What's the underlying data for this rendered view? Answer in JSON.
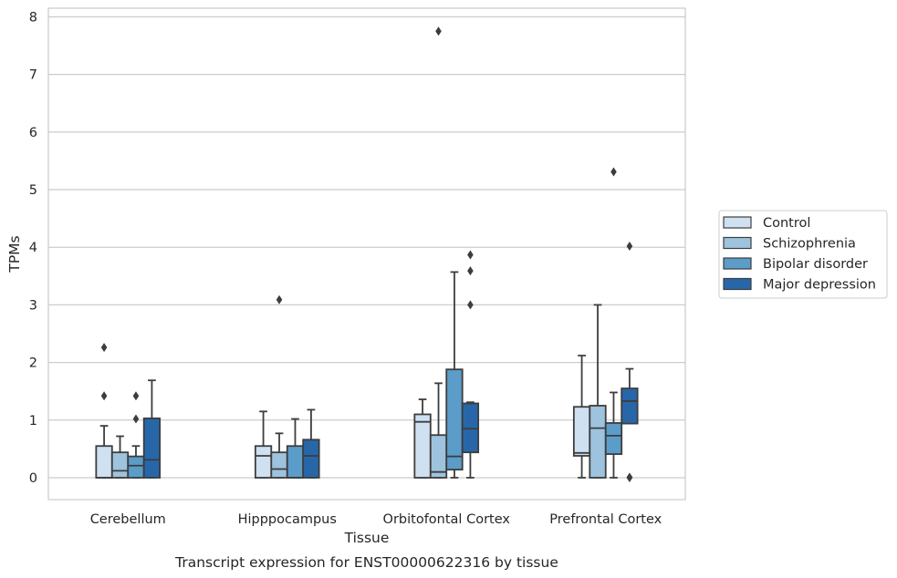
{
  "chart_data": {
    "type": "box",
    "caption": "Transcript expression for ENST00000622316 by tissue",
    "xlabel": "Tissue",
    "ylabel": "TPMs",
    "ylim": [
      -0.38,
      8.15
    ],
    "yticks": [
      "0",
      "1",
      "2",
      "3",
      "4",
      "5",
      "6",
      "7",
      "8"
    ],
    "grid": true,
    "legend_position": "right",
    "categories": [
      "Cerebellum",
      "Hipppocampus",
      "Orbitofontal Cortex",
      "Prefrontal Cortex"
    ],
    "series": [
      {
        "name": "Control",
        "color": "#cfe0f1",
        "boxes": [
          {
            "whislo": 0,
            "q1": 0,
            "med": 0,
            "q3": 0.55,
            "whishi": 0.9,
            "fliers": [
              1.42,
              2.26
            ]
          },
          {
            "whislo": 0,
            "q1": 0,
            "med": 0.38,
            "q3": 0.55,
            "whishi": 1.15,
            "fliers": []
          },
          {
            "whislo": 0,
            "q1": 0,
            "med": 0.97,
            "q3": 1.1,
            "whishi": 1.36,
            "fliers": []
          },
          {
            "whislo": 0,
            "q1": 0.38,
            "med": 0.43,
            "q3": 1.23,
            "whishi": 2.12,
            "fliers": []
          }
        ]
      },
      {
        "name": "Schizophrenia",
        "color": "#9dc3de",
        "boxes": [
          {
            "whislo": 0,
            "q1": 0,
            "med": 0.12,
            "q3": 0.44,
            "whishi": 0.72,
            "fliers": []
          },
          {
            "whislo": 0,
            "q1": 0,
            "med": 0.15,
            "q3": 0.44,
            "whishi": 0.77,
            "fliers": [
              3.09
            ]
          },
          {
            "whislo": 0,
            "q1": 0,
            "med": 0.1,
            "q3": 0.74,
            "whishi": 1.64,
            "fliers": [
              7.75
            ]
          },
          {
            "whislo": 0,
            "q1": 0,
            "med": 0.86,
            "q3": 1.25,
            "whishi": 3.0,
            "fliers": []
          }
        ]
      },
      {
        "name": "Bipolar disorder",
        "color": "#5b9cc9",
        "boxes": [
          {
            "whislo": 0,
            "q1": 0,
            "med": 0.21,
            "q3": 0.37,
            "whishi": 0.55,
            "fliers": [
              1.02,
              1.42
            ]
          },
          {
            "whislo": 0,
            "q1": 0,
            "med": 0,
            "q3": 0.55,
            "whishi": 1.02,
            "fliers": []
          },
          {
            "whislo": 0,
            "q1": 0.14,
            "med": 0.37,
            "q3": 1.88,
            "whishi": 3.57,
            "fliers": []
          },
          {
            "whislo": 0,
            "q1": 0.41,
            "med": 0.73,
            "q3": 0.95,
            "whishi": 1.48,
            "fliers": [
              5.31
            ]
          }
        ]
      },
      {
        "name": "Major depression",
        "color": "#2767a9",
        "boxes": [
          {
            "whislo": 0,
            "q1": 0,
            "med": 0.31,
            "q3": 1.03,
            "whishi": 1.69,
            "fliers": []
          },
          {
            "whislo": 0,
            "q1": 0,
            "med": 0.38,
            "q3": 0.66,
            "whishi": 1.18,
            "fliers": []
          },
          {
            "whislo": 0,
            "q1": 0.44,
            "med": 0.85,
            "q3": 1.29,
            "whishi": 1.31,
            "fliers": [
              3.0,
              3.59,
              3.87
            ]
          },
          {
            "whislo": 0.94,
            "q1": 0.94,
            "med": 1.33,
            "q3": 1.55,
            "whishi": 1.89,
            "fliers": [
              0,
              0.01,
              4.02
            ]
          }
        ]
      }
    ]
  }
}
